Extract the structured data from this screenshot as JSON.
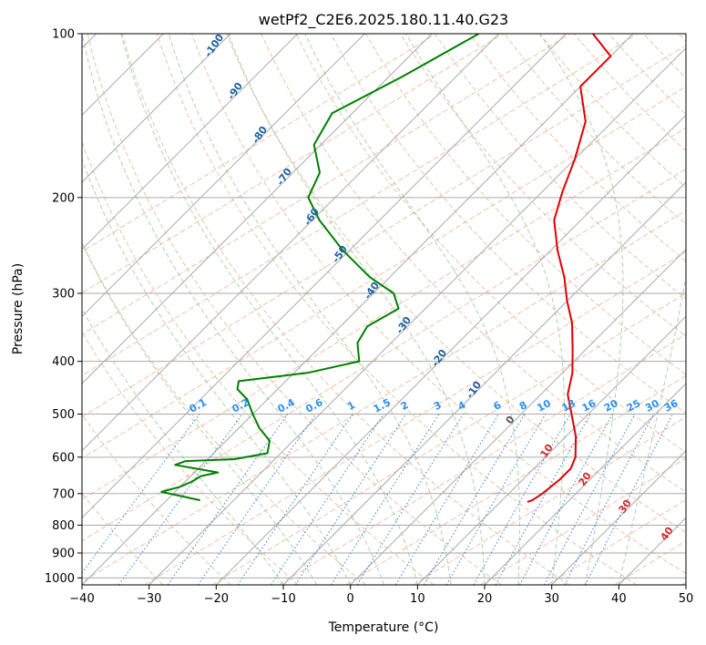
{
  "chart_data": {
    "type": "line",
    "title": "wetPf2_C2E6.2025.180.11.40.G23",
    "xlabel": "Temperature (°C)",
    "ylabel": "Pressure (hPa)",
    "xlim": [
      -40,
      50
    ],
    "ylim": [
      1030,
      100
    ],
    "y_scale": "log",
    "grid": true,
    "x_ticks": [
      -40,
      -30,
      -20,
      -10,
      0,
      10,
      20,
      30,
      40,
      50
    ],
    "y_ticks": [
      100,
      200,
      300,
      400,
      500,
      600,
      700,
      800,
      900,
      1000
    ],
    "series": [
      {
        "color": "#e00000",
        "points": [
          {
            "p": 100,
            "t": -46
          },
          {
            "p": 110,
            "t": -40
          },
          {
            "p": 125,
            "t": -40
          },
          {
            "p": 145,
            "t": -34
          },
          {
            "p": 170,
            "t": -30
          },
          {
            "p": 195,
            "t": -27
          },
          {
            "p": 220,
            "t": -24
          },
          {
            "p": 250,
            "t": -19
          },
          {
            "p": 280,
            "t": -14
          },
          {
            "p": 310,
            "t": -10
          },
          {
            "p": 340,
            "t": -6
          },
          {
            "p": 380,
            "t": -2
          },
          {
            "p": 420,
            "t": 1.5
          },
          {
            "p": 460,
            "t": 4
          },
          {
            "p": 500,
            "t": 7.5
          },
          {
            "p": 550,
            "t": 11.5
          },
          {
            "p": 600,
            "t": 14.5
          },
          {
            "p": 630,
            "t": 15.5
          },
          {
            "p": 660,
            "t": 15.5
          },
          {
            "p": 700,
            "t": 15
          },
          {
            "p": 720,
            "t": 14.5
          },
          {
            "p": 725,
            "t": 14
          }
        ]
      },
      {
        "color": "#008000",
        "points": [
          {
            "p": 100,
            "t": -63
          },
          {
            "p": 120,
            "t": -68
          },
          {
            "p": 140,
            "t": -73
          },
          {
            "p": 160,
            "t": -71
          },
          {
            "p": 180,
            "t": -66
          },
          {
            "p": 200,
            "t": -64
          },
          {
            "p": 220,
            "t": -59
          },
          {
            "p": 250,
            "t": -51
          },
          {
            "p": 280,
            "t": -43
          },
          {
            "p": 300,
            "t": -37
          },
          {
            "p": 320,
            "t": -34
          },
          {
            "p": 345,
            "t": -36
          },
          {
            "p": 370,
            "t": -35
          },
          {
            "p": 400,
            "t": -32
          },
          {
            "p": 420,
            "t": -38
          },
          {
            "p": 435,
            "t": -47
          },
          {
            "p": 450,
            "t": -46
          },
          {
            "p": 470,
            "t": -43
          },
          {
            "p": 500,
            "t": -40
          },
          {
            "p": 530,
            "t": -37
          },
          {
            "p": 560,
            "t": -33.5
          },
          {
            "p": 590,
            "t": -32
          },
          {
            "p": 605,
            "t": -36
          },
          {
            "p": 610,
            "t": -43
          },
          {
            "p": 620,
            "t": -44
          },
          {
            "p": 640,
            "t": -36.5
          },
          {
            "p": 650,
            "t": -38.5
          },
          {
            "p": 665,
            "t": -39
          },
          {
            "p": 680,
            "t": -40
          },
          {
            "p": 695,
            "t": -42
          },
          {
            "p": 720,
            "t": -35
          }
        ]
      }
    ],
    "mixing_ratio_labels": [
      "0.1",
      "0.2",
      "0.4",
      "0.6",
      "1",
      "1.5",
      "2",
      "3",
      "4",
      "6",
      "8",
      "10",
      "13",
      "16",
      "20",
      "25",
      "30",
      "36"
    ],
    "moist_adiabat_labels": [
      "-100",
      "-90",
      "-80",
      "-70",
      "-60",
      "-50",
      "-40",
      "-30",
      "-20",
      "-10",
      "0",
      "10",
      "20",
      "30",
      "40"
    ]
  }
}
